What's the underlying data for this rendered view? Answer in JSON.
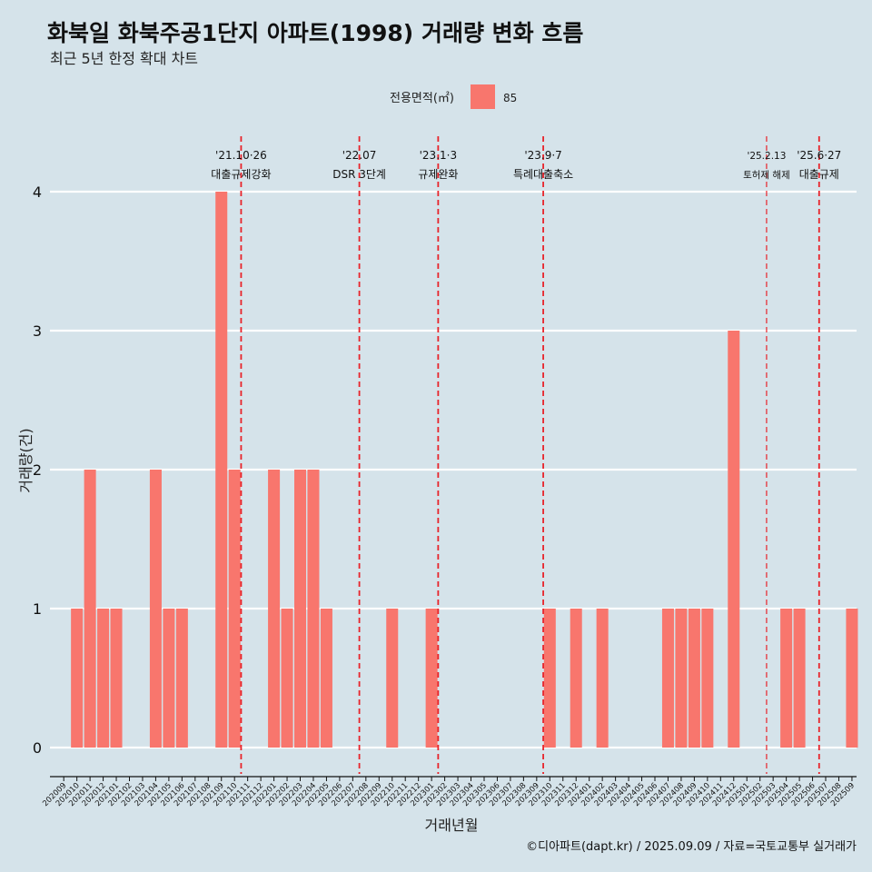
{
  "chart_data": {
    "type": "bar",
    "title": "화북일 화북주공1단지 아파트(1998) 거래량 변화 흐름",
    "subtitle": "최근 5년 한정 확대 차트",
    "xlabel": "거래년월",
    "ylabel": "거래량(건)",
    "caption": "©디아파트(dapt.kr) / 2025.09.09 / 자료=국토교통부 실거래가",
    "legend": {
      "title": "전용면적(㎡)",
      "position": "top-center",
      "entries": [
        {
          "label": "85",
          "color": "#f8766d"
        }
      ]
    },
    "ylim": [
      0,
      4
    ],
    "yticks": [
      "0",
      "1",
      "2",
      "3",
      "4"
    ],
    "grid": true,
    "bar_color": "#f8766d",
    "categories": [
      "202009",
      "202010",
      "202011",
      "202012",
      "202101",
      "202102",
      "202103",
      "202104",
      "202105",
      "202106",
      "202107",
      "202108",
      "202109",
      "202110",
      "202111",
      "202112",
      "202201",
      "202202",
      "202203",
      "202204",
      "202205",
      "202206",
      "202207",
      "202208",
      "202209",
      "202210",
      "202211",
      "202212",
      "202301",
      "202302",
      "202303",
      "202304",
      "202305",
      "202306",
      "202307",
      "202308",
      "202309",
      "202310",
      "202311",
      "202312",
      "202401",
      "202402",
      "202403",
      "202404",
      "202405",
      "202406",
      "202407",
      "202408",
      "202409",
      "202410",
      "202411",
      "202412",
      "202501",
      "202502",
      "202503",
      "202504",
      "202505",
      "202506",
      "202507",
      "202508",
      "202509"
    ],
    "series": [
      {
        "values": [
          0,
          1,
          2,
          1,
          1,
          0,
          0,
          2,
          1,
          1,
          0,
          0,
          4,
          2,
          0,
          0,
          2,
          1,
          2,
          2,
          1,
          0,
          0,
          0,
          0,
          1,
          0,
          0,
          1,
          0,
          0,
          0,
          0,
          0,
          0,
          0,
          0,
          1,
          0,
          1,
          0,
          1,
          0,
          0,
          0,
          0,
          1,
          1,
          1,
          1,
          0,
          3,
          0,
          0,
          0,
          1,
          1,
          0,
          0,
          0,
          1
        ]
      }
    ],
    "annotations": [
      {
        "x": 13.5,
        "date": "'21.10·26",
        "label": "대출규제강화",
        "size": "normal"
      },
      {
        "x": 22.5,
        "date": "'22.07",
        "label": "DSR 3단계",
        "size": "normal"
      },
      {
        "x": 28.5,
        "date": "'23.1·3",
        "label": "규제완화",
        "size": "normal"
      },
      {
        "x": 36.5,
        "date": "'23.9·7",
        "label": "특례대출축소",
        "size": "normal"
      },
      {
        "x": 53.5,
        "date": "'25.2.13",
        "label": "토허제 해제",
        "size": "small"
      },
      {
        "x": 57.5,
        "date": "'25.6·27",
        "label": "대출규제",
        "size": "normal"
      }
    ]
  }
}
